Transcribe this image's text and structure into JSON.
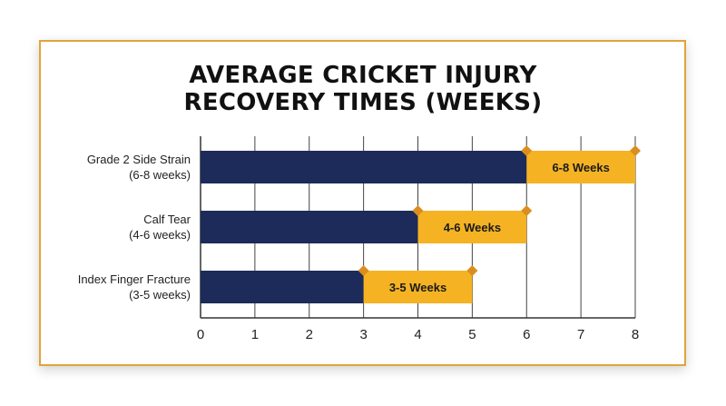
{
  "chart_data": {
    "type": "bar",
    "title_lines": [
      "AVERAGE CRICKET INJURY",
      "RECOVERY TIMES (WEEKS)"
    ],
    "categories": [
      {
        "name": "Grade 2 Side Strain",
        "sub": "(6-8 weeks)"
      },
      {
        "name": "Calf Tear",
        "sub": "(4-6 weeks)"
      },
      {
        "name": "Index Finger Fracture",
        "sub": "(3-5 weeks)"
      }
    ],
    "base_values": [
      6,
      4,
      3
    ],
    "range_values": [
      [
        6,
        8
      ],
      [
        4,
        6
      ],
      [
        3,
        5
      ]
    ],
    "range_labels": [
      "6-8 Weeks",
      "4-6 Weeks",
      "3-5 Weeks"
    ],
    "xlim": [
      0,
      8
    ],
    "ticks": [
      "0",
      "1",
      "2",
      "3",
      "4",
      "5",
      "6",
      "7",
      "8"
    ],
    "grid": true,
    "xlabel": "",
    "ylabel": "",
    "colors": {
      "base": "#1c2b59",
      "range": "#f5b324",
      "marker": "#d98e1f",
      "card_border": "#e0a43a",
      "grid": "#444444"
    }
  }
}
